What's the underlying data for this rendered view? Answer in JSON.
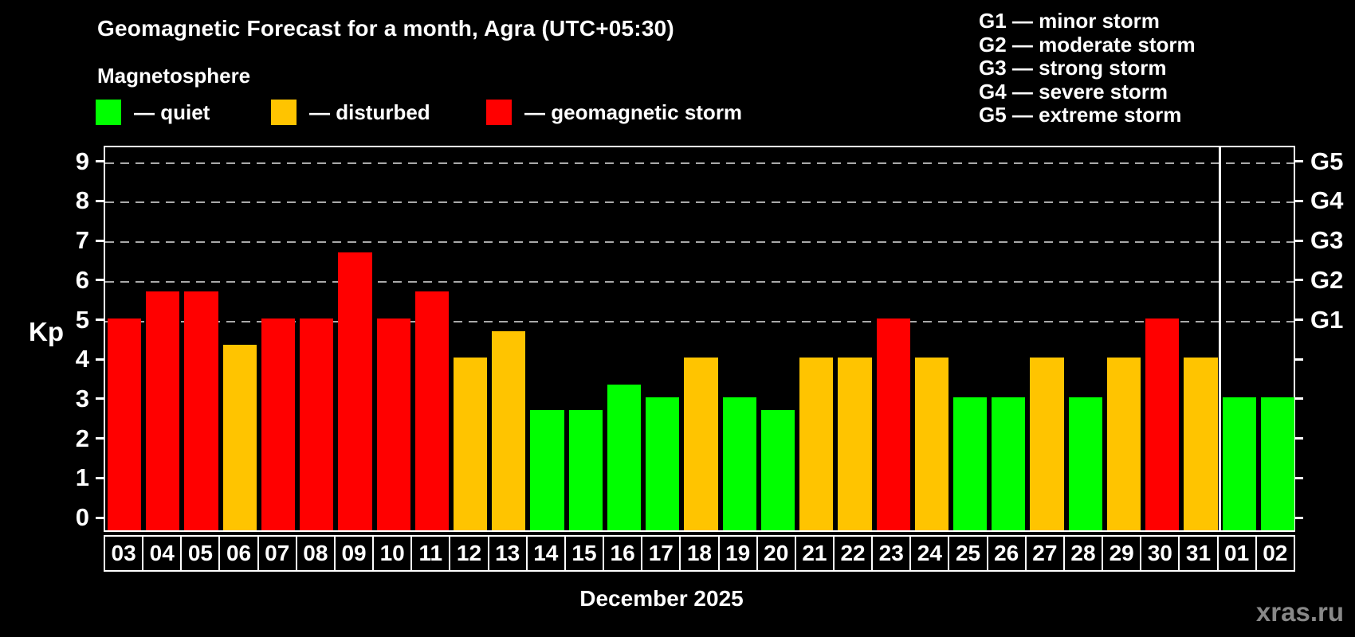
{
  "header": {
    "title": "Geomagnetic Forecast for a month, Agra (UTC+05:30)",
    "subtitle": "Magnetosphere"
  },
  "legend": {
    "items": [
      {
        "name": "quiet",
        "label": "— quiet",
        "color": "#00ff00"
      },
      {
        "name": "disturbed",
        "label": "— disturbed",
        "color": "#ffc400"
      },
      {
        "name": "storm",
        "label": "— geomagnetic storm",
        "color": "#ff0000"
      }
    ]
  },
  "g_scale_legend": {
    "lines": [
      "G1 — minor storm",
      "G2 — moderate storm",
      "G3 — strong storm",
      "G4 — severe storm",
      "G5 — extreme storm"
    ]
  },
  "axes": {
    "y_label": "Kp",
    "y_ticks": [
      0,
      1,
      2,
      3,
      4,
      5,
      6,
      7,
      8,
      9
    ],
    "right_labels": [
      {
        "kp": 5,
        "label": "G1"
      },
      {
        "kp": 6,
        "label": "G2"
      },
      {
        "kp": 7,
        "label": "G3"
      },
      {
        "kp": 8,
        "label": "G4"
      },
      {
        "kp": 9,
        "label": "G5"
      }
    ],
    "x_label": "December 2025"
  },
  "watermark": "xras.ru",
  "chart_data": {
    "type": "bar",
    "title": "Geomagnetic Forecast for a month, Agra (UTC+05:30)",
    "xlabel": "December 2025",
    "ylabel": "Kp",
    "ylim": [
      0,
      9
    ],
    "grid": "horizontal dashed lines only at Kp 5,6,7,8,9 (G1–G5 levels)",
    "legend_position": "top-left",
    "categories": [
      "03",
      "04",
      "05",
      "06",
      "07",
      "08",
      "09",
      "10",
      "11",
      "12",
      "13",
      "14",
      "15",
      "16",
      "17",
      "18",
      "19",
      "20",
      "21",
      "22",
      "23",
      "24",
      "25",
      "26",
      "27",
      "28",
      "29",
      "30",
      "31",
      "01",
      "02"
    ],
    "values": [
      5,
      5.67,
      5.67,
      4.33,
      5,
      5,
      6.67,
      5,
      5.67,
      4,
      4.67,
      2.67,
      2.67,
      3.33,
      3,
      4,
      3,
      2.67,
      4,
      4,
      5,
      4,
      3,
      3,
      4,
      3,
      4,
      5,
      4,
      3,
      3
    ],
    "statuses": [
      "storm",
      "storm",
      "storm",
      "disturbed",
      "storm",
      "storm",
      "storm",
      "storm",
      "storm",
      "disturbed",
      "disturbed",
      "quiet",
      "quiet",
      "quiet",
      "quiet",
      "disturbed",
      "quiet",
      "quiet",
      "disturbed",
      "disturbed",
      "storm",
      "disturbed",
      "quiet",
      "quiet",
      "disturbed",
      "quiet",
      "disturbed",
      "storm",
      "disturbed",
      "quiet",
      "quiet"
    ],
    "status_colors": {
      "quiet": "#00ff00",
      "disturbed": "#ffc400",
      "storm": "#ff0000"
    },
    "month_separator_after_category": "31"
  }
}
